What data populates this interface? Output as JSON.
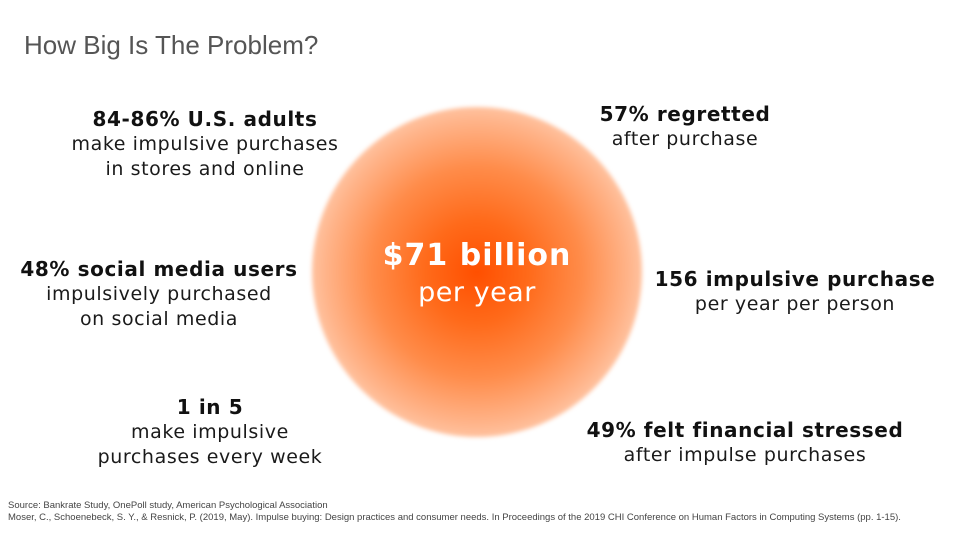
{
  "title": "How Big Is The Problem?",
  "center": {
    "main": "$71 billion",
    "sub": "per year"
  },
  "stats": [
    {
      "id": "adults",
      "head": "84-86% U.S. adults",
      "lines": [
        "make impulsive purchases",
        "in stores and online"
      ]
    },
    {
      "id": "regretted",
      "head": "57% regretted",
      "lines": [
        "after purchase"
      ]
    },
    {
      "id": "social",
      "head": "48% social media users",
      "lines": [
        "impulsively purchased",
        "on social media"
      ]
    },
    {
      "id": "per-person",
      "head": "156 impulsive purchase",
      "lines": [
        "per year per person"
      ]
    },
    {
      "id": "weekly",
      "head": "1 in 5",
      "lines": [
        "make impulsive",
        "purchases every week"
      ]
    },
    {
      "id": "stressed",
      "head": "49% felt financial stressed",
      "lines": [
        "after impulse purchases"
      ]
    }
  ],
  "sources": [
    "Source: Bankrate Study, OnePoll study, American Psychological Association",
    "Moser, C., Schoenebeck, S. Y., & Resnick, P. (2019, May). Impulse buying: Design practices and consumer needs. In Proceedings of the 2019 CHI Conference on Human Factors in Computing Systems (pp. 1-15)."
  ],
  "colors": {
    "accent": "#ff5a0a",
    "title": "#555555",
    "text": "#111111"
  }
}
